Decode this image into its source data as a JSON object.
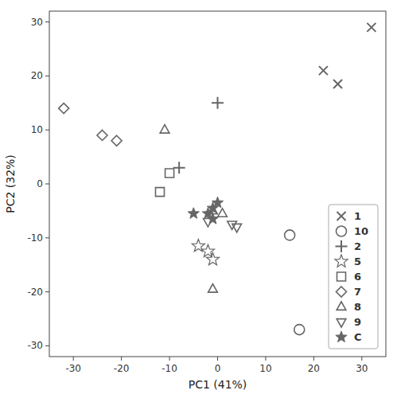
{
  "chart_data": {
    "type": "scatter",
    "title": "",
    "xlabel": "PC1 (41%)",
    "ylabel": "PC2 (32%)",
    "xlim": [
      -35,
      35
    ],
    "ylim": [
      -32,
      32
    ],
    "xticks": [
      -30,
      -20,
      -10,
      0,
      10,
      20,
      30
    ],
    "yticks": [
      -30,
      -20,
      -10,
      0,
      10,
      20,
      30
    ],
    "grid": false,
    "legend": "lower right",
    "series": [
      {
        "name": "1",
        "color": "#666666",
        "marker": "x",
        "x": [
          22,
          25,
          32
        ],
        "values": [
          21,
          18.5,
          29
        ]
      },
      {
        "name": "10",
        "color": "#666666",
        "marker": "circle",
        "x": [
          15,
          17
        ],
        "values": [
          -9.5,
          -27
        ]
      },
      {
        "name": "2",
        "color": "#666666",
        "marker": "plus",
        "x": [
          -8,
          0
        ],
        "values": [
          3,
          15
        ]
      },
      {
        "name": "5",
        "color": "#666666",
        "marker": "star",
        "x": [
          -4,
          -2,
          -1
        ],
        "values": [
          -11.5,
          -12.5,
          -14
        ]
      },
      {
        "name": "6",
        "color": "#666666",
        "marker": "square",
        "x": [
          -10,
          -12
        ],
        "values": [
          2,
          -1.5
        ]
      },
      {
        "name": "7",
        "color": "#666666",
        "marker": "diamond",
        "x": [
          -32,
          -24,
          -21
        ],
        "values": [
          14,
          9,
          8
        ]
      },
      {
        "name": "8",
        "color": "#666666",
        "marker": "triangle-up",
        "x": [
          -11,
          -1,
          1,
          -1
        ],
        "values": [
          10,
          -5,
          -5.5,
          -19.5
        ]
      },
      {
        "name": "9",
        "color": "#666666",
        "marker": "triangle-down",
        "x": [
          -2,
          3,
          4
        ],
        "values": [
          -7,
          -7.5,
          -8
        ]
      },
      {
        "name": "C",
        "color": "#666666",
        "marker": "filled-star",
        "x": [
          -5,
          -1,
          0,
          -2,
          -1
        ],
        "values": [
          -5.5,
          -4.5,
          -3.5,
          -5.5,
          -6.5
        ]
      }
    ]
  }
}
